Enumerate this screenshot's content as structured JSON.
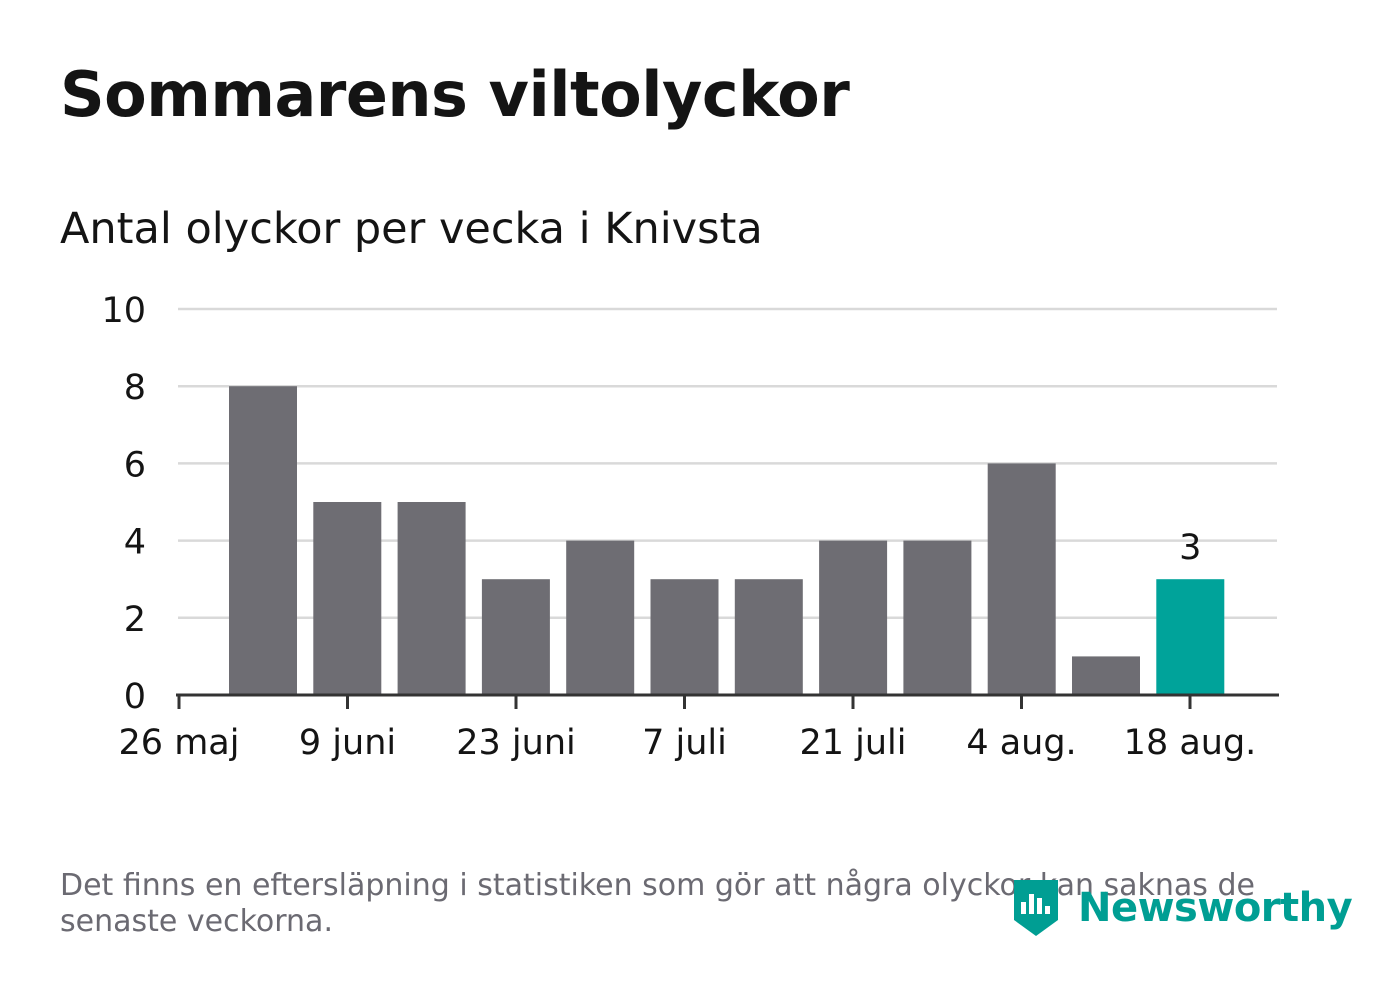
{
  "title": "Sommarens viltolyckor",
  "subtitle": "Antal olyckor per vecka i Knivsta",
  "footnote": "Det finns en eftersläpning i statistiken som gör att några olyckor kan saknas de senaste veckorna.",
  "logo": {
    "text": "Newsworthy",
    "icon": "newsworthy-logo-icon"
  },
  "colors": {
    "bar": "#6e6d73",
    "highlight": "#00a39a",
    "grid": "#d9d9d9",
    "axis": "#333333",
    "text": "#141414",
    "muted": "#6b6a72",
    "brand": "#009e93"
  },
  "chart_data": {
    "type": "bar",
    "title": "Sommarens viltolyckor",
    "subtitle": "Antal olyckor per vecka i Knivsta",
    "xlabel": "",
    "ylabel": "",
    "ylim": [
      0,
      10
    ],
    "yticks": [
      0,
      2,
      4,
      6,
      8,
      10
    ],
    "grid": true,
    "legend": "none",
    "x_tick_labels": [
      "26 maj",
      "9 juni",
      "23 juni",
      "7 juli",
      "21 juli",
      "4 aug.",
      "18 aug."
    ],
    "values": [
      8,
      5,
      5,
      3,
      4,
      3,
      3,
      4,
      4,
      6,
      1,
      3
    ],
    "highlight_index": 11,
    "data_labels": [
      {
        "index": 11,
        "text": "3"
      }
    ]
  }
}
